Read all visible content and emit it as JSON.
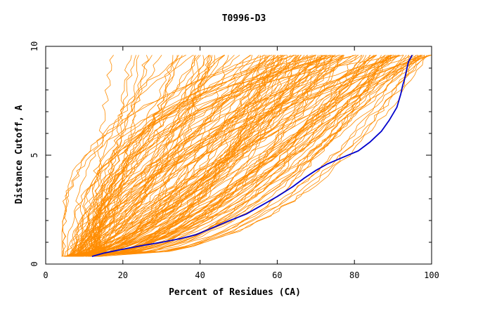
{
  "chart_data": {
    "type": "line",
    "title": "T0996-D3",
    "xlabel": "Percent of Residues (CA)",
    "ylabel": "Distance Cutoff, A",
    "xlim": [
      0,
      100
    ],
    "ylim": [
      0,
      10
    ],
    "x_ticks": [
      "0",
      "20",
      "40",
      "60",
      "80",
      "100"
    ],
    "y_ticks": [
      "0",
      "5",
      "10"
    ],
    "grid": false,
    "legend": "none",
    "colors": {
      "highlight": "#0000cc",
      "background_series": "#ff8c00"
    },
    "highlight_series": {
      "x": [
        12,
        15,
        20,
        25,
        30,
        35,
        39,
        43,
        47,
        52,
        56,
        60,
        64,
        67,
        70,
        73,
        77,
        81,
        84,
        87,
        89,
        91,
        92,
        92.5,
        93,
        93.5,
        94,
        95
      ],
      "y": [
        0.35,
        0.5,
        0.68,
        0.85,
        1.0,
        1.17,
        1.35,
        1.65,
        1.95,
        2.3,
        2.7,
        3.1,
        3.55,
        3.95,
        4.3,
        4.6,
        4.9,
        5.2,
        5.6,
        6.1,
        6.6,
        7.2,
        7.8,
        8.2,
        8.5,
        8.9,
        9.3,
        9.6
      ]
    },
    "background_series_count": 160
  }
}
